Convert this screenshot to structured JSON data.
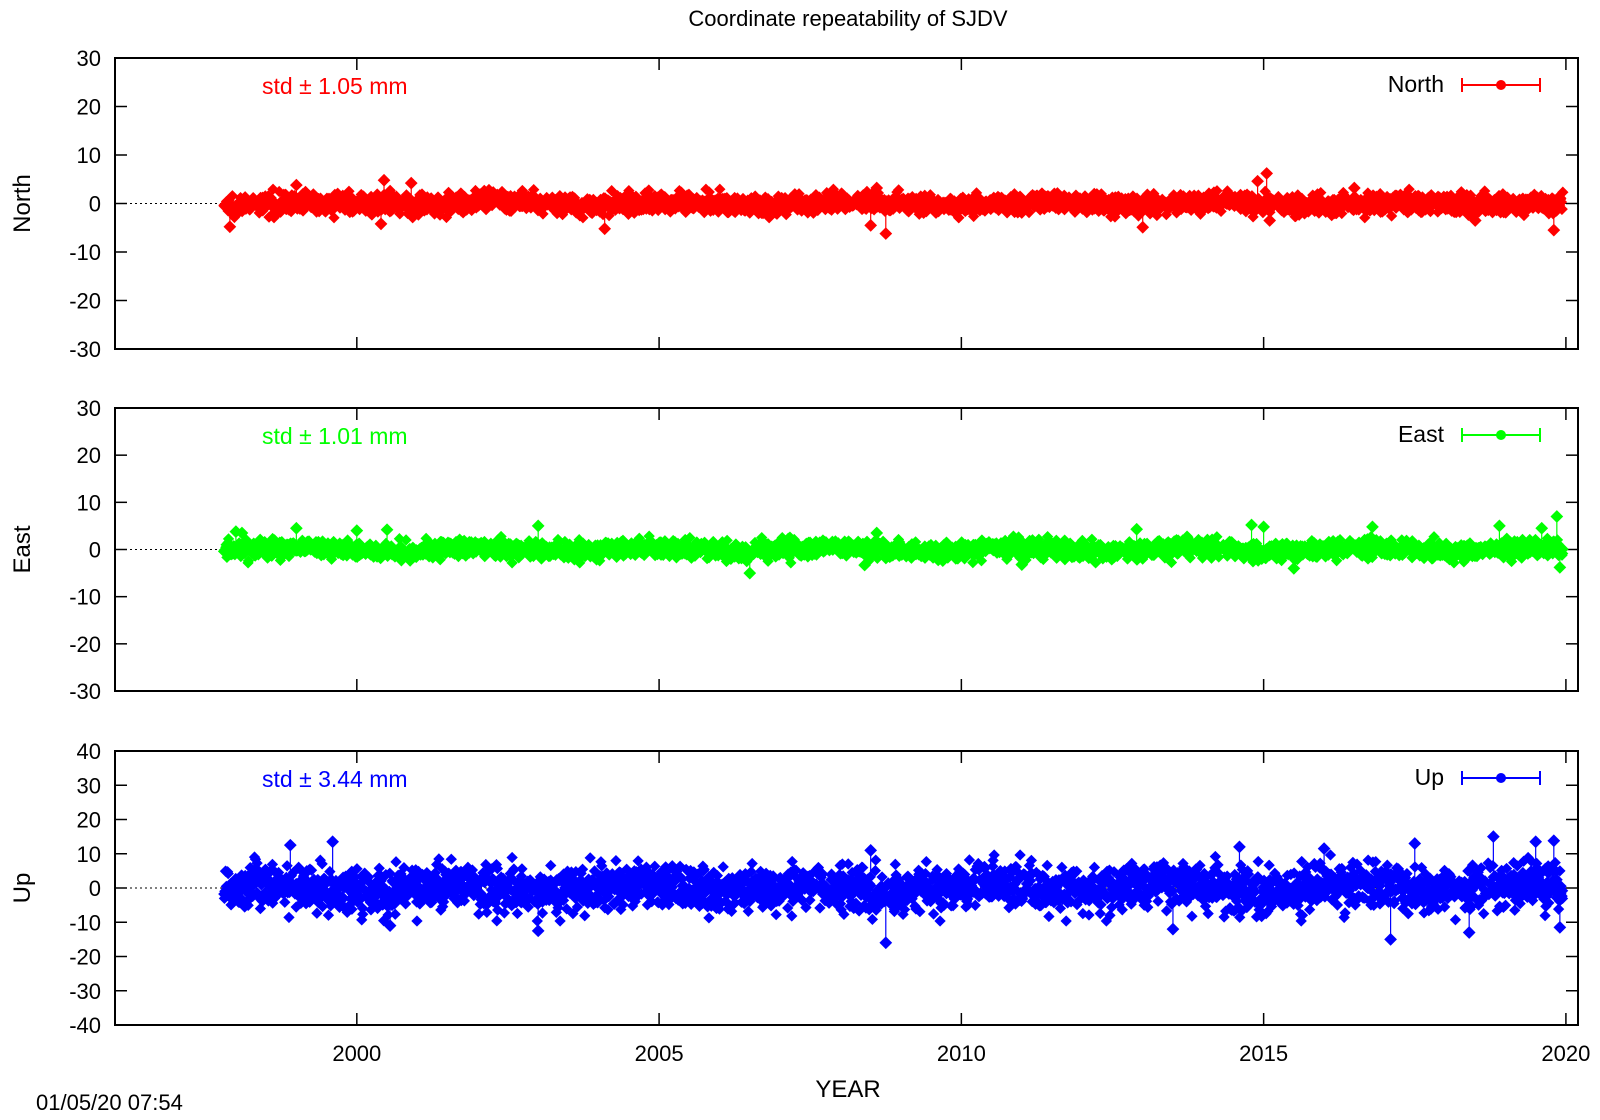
{
  "title": "Coordinate repeatability of SJDV",
  "timestamp": "01/05/20 07:54",
  "chart_data": [
    {
      "type": "scatter",
      "component": "North",
      "ylabel": "North",
      "legend": "North",
      "legend_position": "top-right",
      "std_label": "std ± 1.05 mm",
      "color": "#ff0000",
      "ylim": [
        -30,
        30
      ],
      "yticks": [
        -30,
        -20,
        -10,
        0,
        10,
        20,
        30
      ],
      "xlim": [
        1996,
        2020.2
      ],
      "x_start": 1997.8,
      "x_end": 2019.95,
      "std": 1.05,
      "outliers": [
        [
          1997.9,
          -4.8
        ],
        [
          1999.0,
          3.8
        ],
        [
          2000.4,
          -4.2
        ],
        [
          2000.45,
          4.8
        ],
        [
          2000.9,
          4.2
        ],
        [
          2004.1,
          -5.2
        ],
        [
          2008.5,
          -4.5
        ],
        [
          2008.6,
          3.2
        ],
        [
          2008.75,
          -6.2
        ],
        [
          2013.0,
          -4.9
        ],
        [
          2014.9,
          4.6
        ],
        [
          2015.05,
          6.2
        ],
        [
          2015.1,
          -3.5
        ],
        [
          2016.5,
          3.2
        ],
        [
          2018.5,
          -3.5
        ],
        [
          2019.8,
          -5.5
        ]
      ]
    },
    {
      "type": "scatter",
      "component": "East",
      "ylabel": "East",
      "legend": "East",
      "legend_position": "top-right",
      "std_label": "std ± 1.01 mm",
      "color": "#00ff00",
      "ylim": [
        -30,
        30
      ],
      "yticks": [
        -30,
        -20,
        -10,
        0,
        10,
        20,
        30
      ],
      "xlim": [
        1996,
        2020.2
      ],
      "x_start": 1997.8,
      "x_end": 2019.95,
      "std": 1.01,
      "outliers": [
        [
          1998.0,
          3.8
        ],
        [
          1998.1,
          3.5
        ],
        [
          1999.0,
          4.5
        ],
        [
          2000.0,
          4.0
        ],
        [
          2000.5,
          4.2
        ],
        [
          2003.0,
          5.0
        ],
        [
          2006.5,
          -5.0
        ],
        [
          2008.6,
          3.5
        ],
        [
          2008.4,
          -3.3
        ],
        [
          2011.0,
          -3.2
        ],
        [
          2012.9,
          4.3
        ],
        [
          2014.8,
          5.2
        ],
        [
          2015.0,
          4.8
        ],
        [
          2015.5,
          -4.0
        ],
        [
          2016.8,
          4.8
        ],
        [
          2018.9,
          5.0
        ],
        [
          2019.6,
          4.5
        ],
        [
          2019.85,
          7.0
        ],
        [
          2019.9,
          -3.8
        ]
      ]
    },
    {
      "type": "scatter",
      "component": "Up",
      "ylabel": "Up",
      "legend": "Up",
      "legend_position": "top-right",
      "std_label": "std ± 3.44 mm",
      "color": "#0000ff",
      "ylim": [
        -40,
        40
      ],
      "yticks": [
        -40,
        -30,
        -20,
        -10,
        0,
        10,
        20,
        30,
        40
      ],
      "xlim": [
        1996,
        2020.2
      ],
      "x_start": 1997.8,
      "x_end": 2019.95,
      "std": 3.44,
      "outliers": [
        [
          1998.9,
          12.5
        ],
        [
          1999.6,
          13.5
        ],
        [
          2000.55,
          -11.0
        ],
        [
          2003.0,
          -12.5
        ],
        [
          2008.5,
          11.0
        ],
        [
          2008.75,
          -16.0
        ],
        [
          2013.5,
          -12.0
        ],
        [
          2014.6,
          12.0
        ],
        [
          2016.0,
          11.5
        ],
        [
          2017.1,
          -15.0
        ],
        [
          2017.5,
          13.0
        ],
        [
          2018.4,
          -13.0
        ],
        [
          2018.8,
          15.0
        ],
        [
          2019.5,
          13.5
        ],
        [
          2019.8,
          13.8
        ],
        [
          2019.9,
          -11.5
        ]
      ]
    }
  ],
  "x_axis": {
    "label": "YEAR",
    "ticks": [
      2000,
      2005,
      2010,
      2015,
      2020
    ]
  }
}
